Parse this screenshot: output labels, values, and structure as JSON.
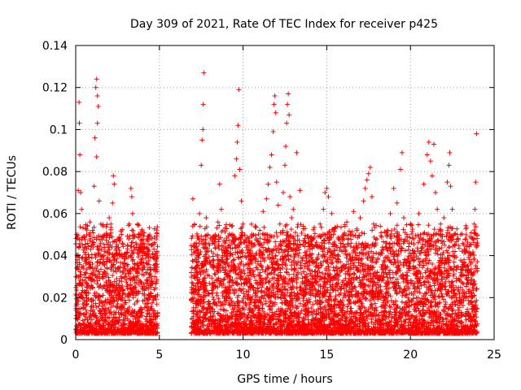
{
  "chart_data": {
    "type": "scatter",
    "title": "Day 309 of 2021, Rate Of TEC Index for receiver p425",
    "xlabel": "GPS time / hours",
    "ylabel": "ROTI / TECUs",
    "xlim": [
      0,
      25
    ],
    "ylim": [
      0,
      0.14
    ],
    "xticks": [
      0,
      5,
      10,
      15,
      20,
      25
    ],
    "xtick_labels": [
      "0",
      "5",
      "10",
      "15",
      "20",
      "25"
    ],
    "yticks": [
      0,
      0.02,
      0.04,
      0.06,
      0.08,
      0.1,
      0.12,
      0.14
    ],
    "ytick_labels": [
      "0",
      "0.02",
      "0.04",
      "0.06",
      "0.08",
      "0.1",
      "0.12",
      "0.14"
    ],
    "grid": true,
    "marker": "+",
    "color": "#ff0000",
    "series": [
      {
        "points": [
          [
            0.05,
            0.021
          ],
          [
            0.1,
            0.034
          ],
          [
            0.15,
            0.071
          ],
          [
            0.2,
            0.113
          ],
          [
            0.22,
            0.103
          ],
          [
            0.25,
            0.088
          ],
          [
            0.3,
            0.07
          ],
          [
            0.35,
            0.062
          ],
          [
            0.4,
            0.045
          ],
          [
            0.5,
            0.031
          ],
          [
            0.6,
            0.038
          ],
          [
            0.7,
            0.026
          ],
          [
            0.8,
            0.05
          ],
          [
            0.85,
            0.056
          ],
          [
            0.9,
            0.043
          ],
          [
            1.0,
            0.052
          ],
          [
            1.1,
            0.073
          ],
          [
            1.15,
            0.096
          ],
          [
            1.2,
            0.12
          ],
          [
            1.25,
            0.124
          ],
          [
            1.3,
            0.116
          ],
          [
            1.35,
            0.111
          ],
          [
            1.3,
            0.103
          ],
          [
            1.25,
            0.087
          ],
          [
            1.4,
            0.066
          ],
          [
            1.5,
            0.055
          ],
          [
            1.6,
            0.049
          ],
          [
            1.7,
            0.036
          ],
          [
            1.8,
            0.042
          ],
          [
            1.9,
            0.05
          ],
          [
            2.0,
            0.058
          ],
          [
            2.1,
            0.055
          ],
          [
            2.2,
            0.065
          ],
          [
            2.25,
            0.078
          ],
          [
            2.3,
            0.074
          ],
          [
            2.4,
            0.047
          ],
          [
            2.5,
            0.034
          ],
          [
            2.6,
            0.028
          ],
          [
            2.8,
            0.022
          ],
          [
            3.0,
            0.03
          ],
          [
            3.1,
            0.045
          ],
          [
            3.2,
            0.055
          ],
          [
            3.3,
            0.072
          ],
          [
            3.35,
            0.068
          ],
          [
            3.4,
            0.06
          ],
          [
            3.5,
            0.05
          ],
          [
            3.6,
            0.046
          ],
          [
            3.7,
            0.055
          ],
          [
            3.8,
            0.05
          ],
          [
            3.9,
            0.038
          ],
          [
            4.0,
            0.044
          ],
          [
            4.1,
            0.041
          ],
          [
            4.2,
            0.032
          ],
          [
            4.3,
            0.028
          ],
          [
            4.4,
            0.031
          ],
          [
            4.5,
            0.026
          ],
          [
            4.6,
            0.041
          ],
          [
            4.7,
            0.039
          ],
          [
            4.8,
            0.035
          ],
          [
            4.85,
            0.042
          ],
          [
            7.0,
            0.067
          ],
          [
            7.1,
            0.055
          ],
          [
            7.2,
            0.046
          ],
          [
            7.3,
            0.04
          ],
          [
            7.4,
            0.06
          ],
          [
            7.5,
            0.083
          ],
          [
            7.55,
            0.095
          ],
          [
            7.6,
            0.1
          ],
          [
            7.62,
            0.112
          ],
          [
            7.65,
            0.127
          ],
          [
            7.8,
            0.058
          ],
          [
            7.9,
            0.05
          ],
          [
            8.0,
            0.045
          ],
          [
            8.2,
            0.038
          ],
          [
            8.4,
            0.049
          ],
          [
            8.5,
            0.056
          ],
          [
            8.6,
            0.074
          ],
          [
            8.7,
            0.062
          ],
          [
            8.8,
            0.052
          ],
          [
            9.0,
            0.04
          ],
          [
            9.2,
            0.045
          ],
          [
            9.3,
            0.05
          ],
          [
            9.5,
            0.078
          ],
          [
            9.6,
            0.086
          ],
          [
            9.65,
            0.094
          ],
          [
            9.7,
            0.102
          ],
          [
            9.75,
            0.119
          ],
          [
            9.8,
            0.081
          ],
          [
            9.9,
            0.066
          ],
          [
            10.0,
            0.055
          ],
          [
            10.2,
            0.044
          ],
          [
            10.4,
            0.038
          ],
          [
            10.6,
            0.033
          ],
          [
            10.8,
            0.041
          ],
          [
            11.0,
            0.052
          ],
          [
            11.2,
            0.061
          ],
          [
            11.4,
            0.067
          ],
          [
            11.5,
            0.074
          ],
          [
            11.6,
            0.082
          ],
          [
            11.7,
            0.088
          ],
          [
            11.8,
            0.099
          ],
          [
            11.85,
            0.112
          ],
          [
            11.9,
            0.116
          ],
          [
            11.95,
            0.108
          ],
          [
            12.0,
            0.075
          ],
          [
            12.1,
            0.064
          ],
          [
            12.2,
            0.055
          ],
          [
            12.4,
            0.07
          ],
          [
            12.5,
            0.083
          ],
          [
            12.55,
            0.092
          ],
          [
            12.6,
            0.103
          ],
          [
            12.65,
            0.112
          ],
          [
            12.7,
            0.117
          ],
          [
            12.75,
            0.107
          ],
          [
            12.8,
            0.068
          ],
          [
            12.9,
            0.058
          ],
          [
            13.0,
            0.062
          ],
          [
            13.2,
            0.089
          ],
          [
            13.4,
            0.071
          ],
          [
            13.6,
            0.054
          ],
          [
            13.8,
            0.04
          ],
          [
            14.0,
            0.043
          ],
          [
            14.2,
            0.048
          ],
          [
            14.4,
            0.038
          ],
          [
            14.6,
            0.055
          ],
          [
            14.8,
            0.062
          ],
          [
            14.9,
            0.07
          ],
          [
            15.0,
            0.072
          ],
          [
            15.1,
            0.068
          ],
          [
            15.3,
            0.06
          ],
          [
            15.5,
            0.045
          ],
          [
            15.7,
            0.038
          ],
          [
            15.9,
            0.042
          ],
          [
            16.0,
            0.05
          ],
          [
            16.2,
            0.056
          ],
          [
            16.4,
            0.05
          ],
          [
            16.6,
            0.061
          ],
          [
            16.8,
            0.052
          ],
          [
            17.0,
            0.058
          ],
          [
            17.2,
            0.066
          ],
          [
            17.3,
            0.072
          ],
          [
            17.4,
            0.076
          ],
          [
            17.5,
            0.079
          ],
          [
            17.6,
            0.082
          ],
          [
            17.7,
            0.068
          ],
          [
            17.8,
            0.055
          ],
          [
            18.0,
            0.048
          ],
          [
            18.2,
            0.054
          ],
          [
            18.4,
            0.043
          ],
          [
            18.6,
            0.049
          ],
          [
            18.8,
            0.06
          ],
          [
            19.0,
            0.072
          ],
          [
            19.2,
            0.065
          ],
          [
            19.4,
            0.081
          ],
          [
            19.5,
            0.089
          ],
          [
            19.6,
            0.058
          ],
          [
            19.8,
            0.049
          ],
          [
            20.0,
            0.055
          ],
          [
            20.2,
            0.048
          ],
          [
            20.5,
            0.06
          ],
          [
            20.8,
            0.074
          ],
          [
            21.0,
            0.088
          ],
          [
            21.1,
            0.094
          ],
          [
            21.2,
            0.085
          ],
          [
            21.3,
            0.078
          ],
          [
            21.4,
            0.093
          ],
          [
            21.5,
            0.07
          ],
          [
            21.6,
            0.062
          ],
          [
            21.8,
            0.055
          ],
          [
            22.0,
            0.058
          ],
          [
            22.2,
            0.075
          ],
          [
            22.3,
            0.083
          ],
          [
            22.35,
            0.089
          ],
          [
            22.4,
            0.073
          ],
          [
            22.5,
            0.062
          ],
          [
            22.8,
            0.05
          ],
          [
            23.0,
            0.05
          ],
          [
            23.2,
            0.038
          ],
          [
            23.4,
            0.032
          ],
          [
            23.6,
            0.036
          ],
          [
            23.8,
            0.055
          ],
          [
            23.85,
            0.062
          ],
          [
            23.9,
            0.075
          ],
          [
            23.95,
            0.098
          ],
          [
            24.0,
            0.046
          ]
        ],
        "dense_band": {
          "segments": [
            [
              0.0,
              4.9
            ],
            [
              6.9,
              24.0
            ]
          ],
          "y_floor": 0.003,
          "y_typical_max": 0.03,
          "density_per_hour": 260
        }
      }
    ]
  }
}
